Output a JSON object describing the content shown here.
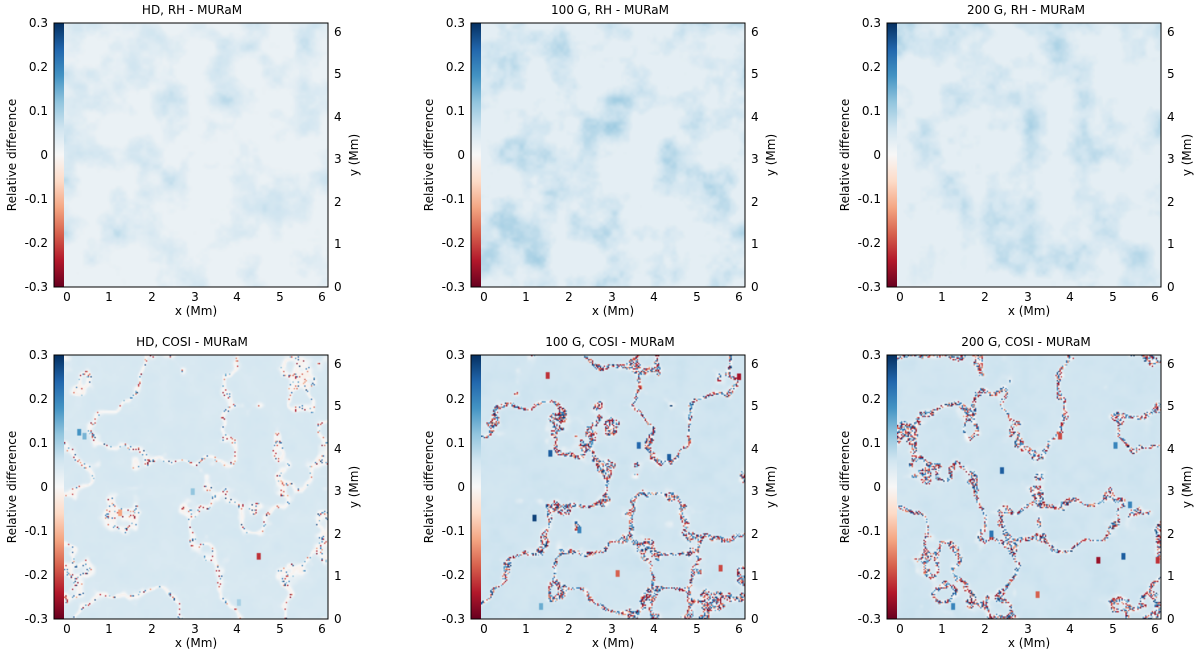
{
  "figure": {
    "colormap": [
      "#67001f",
      "#b2182b",
      "#d6604d",
      "#f4a582",
      "#fddbc7",
      "#f7f7f7",
      "#d1e5f0",
      "#92c5de",
      "#4393c3",
      "#2166ac",
      "#053061"
    ],
    "background_color": "#f7f7f7"
  },
  "chart_data": [
    {
      "type": "heatmap",
      "title": "HD, RH - MURaM",
      "xlabel": "x (Mm)",
      "ylabel": "y (Mm)",
      "cbar_label": "Relative difference",
      "xlim": [
        -0.2,
        6.2
      ],
      "ylim": [
        0,
        6.2
      ],
      "clim": [
        -0.3,
        0.3
      ],
      "xticks": [
        0,
        1,
        2,
        3,
        4,
        5,
        6
      ],
      "yticks": [
        0,
        1,
        2,
        3,
        4,
        5,
        6
      ],
      "cbar_ticks": [
        0.3,
        0.2,
        0.1,
        -0.0,
        -0.1,
        -0.2,
        -0.3
      ],
      "field": {
        "kind": "rh",
        "seed": 11,
        "mean": 0.02,
        "amp": 0.06,
        "strong_fraction": 0,
        "strong_points": []
      }
    },
    {
      "type": "heatmap",
      "title": "100 G, RH - MURaM",
      "xlabel": "x (Mm)",
      "ylabel": "y (Mm)",
      "cbar_label": "Relative difference",
      "xlim": [
        -0.2,
        6.2
      ],
      "ylim": [
        0,
        6.2
      ],
      "clim": [
        -0.3,
        0.3
      ],
      "xticks": [
        0,
        1,
        2,
        3,
        4,
        5,
        6
      ],
      "yticks": [
        0,
        1,
        2,
        3,
        4,
        5,
        6
      ],
      "cbar_ticks": [
        0.3,
        0.2,
        0.1,
        -0.0,
        -0.1,
        -0.2,
        -0.3
      ],
      "field": {
        "kind": "rh",
        "seed": 23,
        "mean": 0.03,
        "amp": 0.08,
        "strong_fraction": 0,
        "strong_points": []
      }
    },
    {
      "type": "heatmap",
      "title": "200 G, RH - MURaM",
      "xlabel": "x (Mm)",
      "ylabel": "y (Mm)",
      "cbar_label": "Relative difference",
      "xlim": [
        -0.2,
        6.2
      ],
      "ylim": [
        0,
        6.2
      ],
      "clim": [
        -0.3,
        0.3
      ],
      "xticks": [
        0,
        1,
        2,
        3,
        4,
        5,
        6
      ],
      "yticks": [
        0,
        1,
        2,
        3,
        4,
        5,
        6
      ],
      "cbar_ticks": [
        0.3,
        0.2,
        0.1,
        -0.0,
        -0.1,
        -0.2,
        -0.3
      ],
      "field": {
        "kind": "rh",
        "seed": 37,
        "mean": 0.03,
        "amp": 0.07,
        "strong_fraction": 0,
        "strong_points": []
      }
    },
    {
      "type": "heatmap",
      "title": "HD, COSI - MURaM",
      "xlabel": "x (Mm)",
      "ylabel": "y (Mm)",
      "cbar_label": "Relative difference",
      "xlim": [
        -0.2,
        6.2
      ],
      "ylim": [
        0,
        6.2
      ],
      "clim": [
        -0.3,
        0.3
      ],
      "xticks": [
        0,
        1,
        2,
        3,
        4,
        5,
        6
      ],
      "yticks": [
        0,
        1,
        2,
        3,
        4,
        5,
        6
      ],
      "cbar_ticks": [
        0.3,
        0.2,
        0.1,
        -0.0,
        -0.1,
        -0.2,
        -0.3
      ],
      "field": {
        "kind": "cosi",
        "seed": 41,
        "mean": 0.05,
        "amp": 0.03,
        "strong_fraction": 0.003,
        "strong_points": [
          {
            "x": 0.35,
            "y": 4.4,
            "v": 0.18
          },
          {
            "x": 0.45,
            "y": 4.3,
            "v": 0.14
          },
          {
            "x": 4.55,
            "y": 1.5,
            "v": -0.22
          },
          {
            "x": 1.3,
            "y": 2.5,
            "v": -0.12
          },
          {
            "x": 3.0,
            "y": 3.0,
            "v": 0.12
          },
          {
            "x": 4.1,
            "y": 0.4,
            "v": 0.1
          }
        ]
      }
    },
    {
      "type": "heatmap",
      "title": "100 G, COSI - MURaM",
      "xlabel": "x (Mm)",
      "ylabel": "y (Mm)",
      "cbar_label": "Relative difference",
      "xlim": [
        -0.2,
        6.2
      ],
      "ylim": [
        0,
        6.2
      ],
      "clim": [
        -0.3,
        0.3
      ],
      "xticks": [
        0,
        1,
        2,
        3,
        4,
        5,
        6
      ],
      "yticks": [
        0,
        1,
        2,
        3,
        4,
        5,
        6
      ],
      "cbar_ticks": [
        0.3,
        0.2,
        0.1,
        -0.0,
        -0.1,
        -0.2,
        -0.3
      ],
      "field": {
        "kind": "cosi",
        "seed": 53,
        "mean": 0.06,
        "amp": 0.035,
        "strong_fraction": 0.015,
        "strong_points": [
          {
            "x": 1.25,
            "y": 2.4,
            "v": 0.28
          },
          {
            "x": 1.6,
            "y": 3.9,
            "v": 0.25
          },
          {
            "x": 3.7,
            "y": 4.1,
            "v": 0.24
          },
          {
            "x": 4.4,
            "y": 3.8,
            "v": 0.25
          },
          {
            "x": 1.55,
            "y": 5.75,
            "v": -0.22
          },
          {
            "x": 6.05,
            "y": 5.7,
            "v": -0.25
          },
          {
            "x": 2.3,
            "y": 2.1,
            "v": 0.2
          },
          {
            "x": 1.4,
            "y": 0.3,
            "v": 0.15
          },
          {
            "x": 3.2,
            "y": 1.1,
            "v": -0.18
          },
          {
            "x": 5.6,
            "y": 1.2,
            "v": -0.2
          }
        ]
      }
    },
    {
      "type": "heatmap",
      "title": "200 G, COSI - MURaM",
      "xlabel": "x (Mm)",
      "ylabel": "y (Mm)",
      "cbar_label": "Relative difference",
      "xlim": [
        -0.2,
        6.2
      ],
      "ylim": [
        0,
        6.2
      ],
      "clim": [
        -0.3,
        0.3
      ],
      "xticks": [
        0,
        1,
        2,
        3,
        4,
        5,
        6
      ],
      "yticks": [
        0,
        1,
        2,
        3,
        4,
        5,
        6
      ],
      "cbar_ticks": [
        0.3,
        0.2,
        0.1,
        -0.0,
        -0.1,
        -0.2,
        -0.3
      ],
      "field": {
        "kind": "cosi",
        "seed": 67,
        "mean": 0.06,
        "amp": 0.035,
        "strong_fraction": 0.014,
        "strong_points": [
          {
            "x": 2.45,
            "y": 3.5,
            "v": 0.25
          },
          {
            "x": 4.7,
            "y": 1.4,
            "v": -0.26
          },
          {
            "x": 5.3,
            "y": 1.5,
            "v": 0.25
          },
          {
            "x": 2.2,
            "y": 2.0,
            "v": 0.22
          },
          {
            "x": 5.45,
            "y": 2.7,
            "v": 0.2
          },
          {
            "x": 3.8,
            "y": 4.3,
            "v": -0.2
          },
          {
            "x": 5.1,
            "y": 4.1,
            "v": 0.2
          },
          {
            "x": 1.3,
            "y": 0.3,
            "v": 0.2
          },
          {
            "x": 3.3,
            "y": 0.6,
            "v": -0.18
          },
          {
            "x": 6.1,
            "y": 1.4,
            "v": -0.22
          }
        ]
      }
    }
  ]
}
